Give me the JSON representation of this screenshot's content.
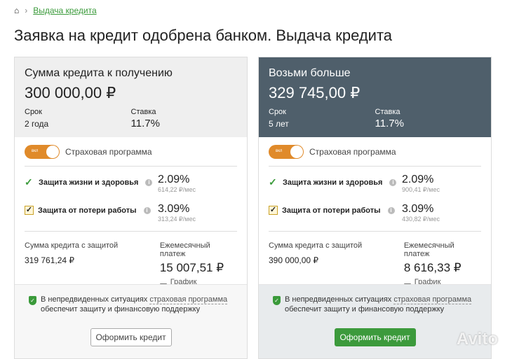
{
  "breadcrumb": {
    "home_icon": "home-icon",
    "link": "Выдача кредита"
  },
  "title": "Заявка на кредит одобрена банком. Выдача кредита",
  "offers": [
    {
      "title": "Сумма кредита к получению",
      "amount": "300 000,00 ₽",
      "term_label": "Срок",
      "term": "2 года",
      "rate_label": "Ставка",
      "rate": "11.7%",
      "toggle": "вкл",
      "insurance_label": "Страховая программа",
      "life": {
        "label": "Защита жизни и здоровья",
        "pct": "2.09%",
        "monthly": "614,22 ₽/мес"
      },
      "job": {
        "label": "Защита от потери работы",
        "pct": "3.09%",
        "monthly": "313,24 ₽/мес",
        "checked": true
      },
      "total_label": "Сумма кредита с защитой",
      "total": "319 761,24 ₽",
      "payment_label": "Ежемесячный платеж",
      "payment": "15 007,51 ₽",
      "schedule": "График погашения",
      "note_a": "В непредвиденных ситуациях ",
      "note_link": "страховая программа",
      "note_b": " обеспечит защиту и финансовую поддержку",
      "button": "Оформить кредит"
    },
    {
      "title": "Возьми больше",
      "amount": "329 745,00 ₽",
      "term_label": "Срок",
      "term": "5 лет",
      "rate_label": "Ставка",
      "rate": "11.7%",
      "toggle": "вкл",
      "insurance_label": "Страховая программа",
      "life": {
        "label": "Защита жизни и здоровья",
        "pct": "2.09%",
        "monthly": "900,41 ₽/мес"
      },
      "job": {
        "label": "Защита от потери работы",
        "pct": "3.09%",
        "monthly": "430,82 ₽/мес",
        "checked": true
      },
      "total_label": "Сумма кредита с защитой",
      "total": "390 000,00 ₽",
      "payment_label": "Ежемесячный платеж",
      "payment": "8 616,33 ₽",
      "schedule": "График погашения",
      "note_a": "В непредвиденных ситуациях ",
      "note_link": "страховая программа",
      "note_b": " обеспечит защиту и финансовую поддержку",
      "button": "Оформить кредит"
    }
  ],
  "watermark": "Avito",
  "colors": {
    "accent_green": "#3c9a3c",
    "toggle_orange": "#e08a2a",
    "promo_header": "#4f5f6b"
  }
}
